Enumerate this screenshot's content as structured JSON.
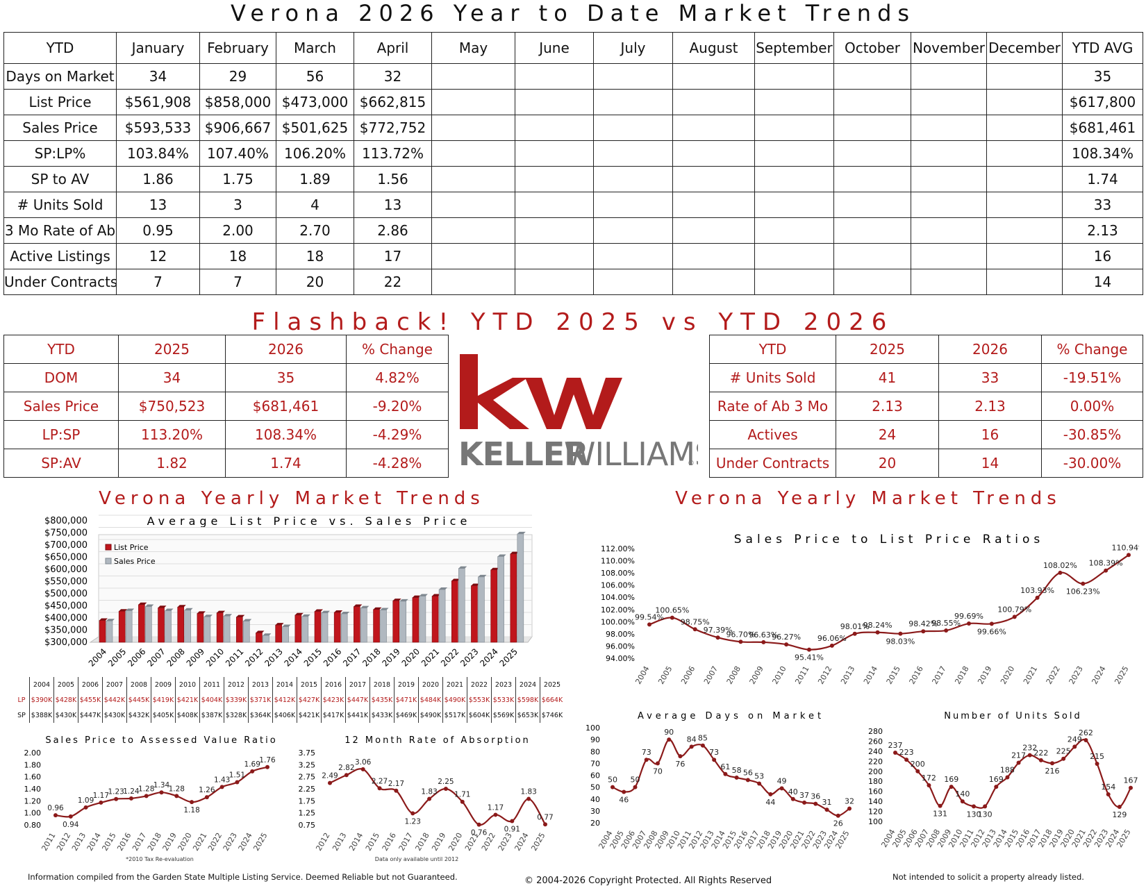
{
  "title": "Verona 2026 Year to Date Market Trends",
  "main_table": {
    "headers": [
      "YTD",
      "January",
      "February",
      "March",
      "April",
      "May",
      "June",
      "July",
      "August",
      "September",
      "October",
      "November",
      "December",
      "YTD AVG"
    ],
    "rows": [
      [
        "Days on Market",
        "34",
        "29",
        "56",
        "32",
        "",
        "",
        "",
        "",
        "",
        "",
        "",
        "",
        "35"
      ],
      [
        "List Price",
        "$561,908",
        "$858,000",
        "$473,000",
        "$662,815",
        "",
        "",
        "",
        "",
        "",
        "",
        "",
        "",
        "$617,800"
      ],
      [
        "Sales Price",
        "$593,533",
        "$906,667",
        "$501,625",
        "$772,752",
        "",
        "",
        "",
        "",
        "",
        "",
        "",
        "",
        "$681,461"
      ],
      [
        "SP:LP%",
        "103.84%",
        "107.40%",
        "106.20%",
        "113.72%",
        "",
        "",
        "",
        "",
        "",
        "",
        "",
        "",
        "108.34%"
      ],
      [
        "SP to AV",
        "1.86",
        "1.75",
        "1.89",
        "1.56",
        "",
        "",
        "",
        "",
        "",
        "",
        "",
        "",
        "1.74"
      ],
      [
        "# Units Sold",
        "13",
        "3",
        "4",
        "13",
        "",
        "",
        "",
        "",
        "",
        "",
        "",
        "",
        "33"
      ],
      [
        "3 Mo Rate of Ab",
        "0.95",
        "2.00",
        "2.70",
        "2.86",
        "",
        "",
        "",
        "",
        "",
        "",
        "",
        "",
        "2.13"
      ],
      [
        "Active Listings",
        "12",
        "18",
        "18",
        "17",
        "",
        "",
        "",
        "",
        "",
        "",
        "",
        "",
        "16"
      ],
      [
        "Under Contracts",
        "7",
        "7",
        "20",
        "22",
        "",
        "",
        "",
        "",
        "",
        "",
        "",
        "",
        "14"
      ]
    ]
  },
  "flashback_title": "Flashback! YTD 2025 vs YTD 2026",
  "left_compare": {
    "headers": [
      "YTD",
      "2025",
      "2026",
      "% Change"
    ],
    "rows": [
      [
        "DOM",
        "34",
        "35",
        "4.82%"
      ],
      [
        "Sales Price",
        "$750,523",
        "$681,461",
        "-9.20%"
      ],
      [
        "LP:SP",
        "113.20%",
        "108.34%",
        "-4.29%"
      ],
      [
        "SP:AV",
        "1.82",
        "1.74",
        "-4.28%"
      ]
    ]
  },
  "right_compare": {
    "headers": [
      "YTD",
      "2025",
      "2026",
      "% Change"
    ],
    "rows": [
      [
        "# Units Sold",
        "41",
        "33",
        "-19.51%"
      ],
      [
        "Rate of Ab 3 Mo",
        "2.13",
        "2.13",
        "0.00%"
      ],
      [
        "Actives",
        "24",
        "16",
        "-30.85%"
      ],
      [
        "Under Contracts",
        "20",
        "14",
        "-30.00%"
      ]
    ]
  },
  "logo": {
    "mark": "kw",
    "wordmark_bold": "KELLER",
    "wordmark_light": "WILLIAMS",
    "registered": "®",
    "color": "#b31b1b"
  },
  "section_titles": {
    "left": "Verona Yearly Market Trends",
    "right": "Verona Yearly Market Trends"
  },
  "colors": {
    "accent": "#b31b1b",
    "line": "#8b1a1a",
    "bar_list": "#c0151c",
    "bar_sales": "#b0b8c0"
  },
  "footers": {
    "left": "Information compiled from the Garden State Multiple Listing Service. Deemed Reliable but not Guaranteed.",
    "center": "© 2004-2026 Copyright Protected. All Rights Reserved",
    "right": "Not intended to solicit a property already listed."
  },
  "chart_data": [
    {
      "type": "bar",
      "title": "Average List Price vs. Sales Price",
      "categories": [
        "2004",
        "2005",
        "2006",
        "2007",
        "2008",
        "2009",
        "2010",
        "2011",
        "2012",
        "2013",
        "2014",
        "2015",
        "2016",
        "2017",
        "2018",
        "2019",
        "2020",
        "2021",
        "2022",
        "2023",
        "2024",
        "2025"
      ],
      "series": [
        {
          "name": "List Price",
          "values": [
            390000,
            428000,
            455000,
            442000,
            445000,
            419000,
            421000,
            404000,
            339000,
            371000,
            412000,
            427000,
            423000,
            447000,
            435000,
            471000,
            484000,
            490000,
            553000,
            533000,
            598000,
            664000
          ]
        },
        {
          "name": "Sales Price",
          "values": [
            388000,
            430000,
            447000,
            430000,
            432000,
            405000,
            408000,
            387000,
            328000,
            364000,
            406000,
            421000,
            417000,
            441000,
            433000,
            469000,
            490000,
            517000,
            604000,
            569000,
            653000,
            746000
          ]
        }
      ],
      "ylim": [
        300000,
        800000
      ],
      "y_ticks": [
        "$800,000",
        "$750,000",
        "$700,000",
        "$650,000",
        "$600,000",
        "$550,000",
        "$500,000",
        "$450,000",
        "$400,000",
        "$350,000",
        "$300,000"
      ],
      "legend": "top-left",
      "data_table": {
        "years": [
          "2004",
          "2005",
          "2006",
          "2007",
          "2008",
          "2009",
          "2010",
          "2011",
          "2012",
          "2013",
          "2014",
          "2015",
          "2016",
          "2017",
          "2018",
          "2019",
          "2020",
          "2021",
          "2022",
          "2023",
          "2024",
          "2025"
        ],
        "rows": [
          {
            "label": "LP",
            "values": [
              "$390K",
              "$428K",
              "$455K",
              "$442K",
              "$445K",
              "$419K",
              "$421K",
              "$404K",
              "$339K",
              "$371K",
              "$412K",
              "$427K",
              "$423K",
              "$447K",
              "$435K",
              "$471K",
              "$484K",
              "$490K",
              "$553K",
              "$533K",
              "$598K",
              "$664K"
            ]
          },
          {
            "label": "SP",
            "values": [
              "$388K",
              "$430K",
              "$447K",
              "$430K",
              "$432K",
              "$405K",
              "$408K",
              "$387K",
              "$328K",
              "$364K",
              "$406K",
              "$421K",
              "$417K",
              "$441K",
              "$433K",
              "$469K",
              "$490K",
              "$517K",
              "$604K",
              "$569K",
              "$653K",
              "$746K"
            ]
          }
        ]
      }
    },
    {
      "type": "line",
      "title": "Sales Price to List Price Ratios",
      "x": [
        "2004",
        "2005",
        "2006",
        "2007",
        "2008",
        "2009",
        "2010",
        "2011",
        "2012",
        "2013",
        "2014",
        "2015",
        "2016",
        "2017",
        "2018",
        "2019",
        "2020",
        "2021",
        "2022",
        "2023",
        "2024",
        "2025"
      ],
      "values": [
        99.54,
        100.65,
        98.75,
        97.39,
        96.7,
        96.63,
        96.27,
        95.41,
        96.06,
        98.01,
        98.24,
        98.03,
        98.42,
        98.55,
        99.69,
        99.66,
        100.79,
        103.93,
        108.02,
        106.23,
        108.39,
        110.94
      ],
      "labels": [
        "99.54%",
        "100.65%",
        "98.75%",
        "97.39%",
        "96.70%",
        "96.63%",
        "96.27%",
        "95.41%",
        "96.06%",
        "98.01%",
        "98.24%",
        "98.03%",
        "98.42%",
        "98.55%",
        "99.69%",
        "99.66%",
        "100.79%",
        "103.93%",
        "108.02%",
        "106.23%",
        "108.39%",
        "110.94%"
      ],
      "ylim": [
        94,
        112
      ],
      "y_ticks": [
        "112.00%",
        "110.00%",
        "108.00%",
        "106.00%",
        "104.00%",
        "102.00%",
        "100.00%",
        "98.00%",
        "96.00%",
        "94.00%"
      ]
    },
    {
      "type": "line",
      "title": "Sales Price to Assessed Value Ratio",
      "x": [
        "2011",
        "2012",
        "2013",
        "2014",
        "2015",
        "2016",
        "2017",
        "2018",
        "2019",
        "2020",
        "2021",
        "2022",
        "2023",
        "2024",
        "2025"
      ],
      "values": [
        0.96,
        0.94,
        1.09,
        1.17,
        1.23,
        1.24,
        1.28,
        1.34,
        1.28,
        1.18,
        1.26,
        1.43,
        1.51,
        1.69,
        1.76
      ],
      "labels": [
        "0.96",
        "0.94",
        "1.09",
        "1.17",
        "1.23",
        "1.24",
        "1.28",
        "1.34",
        "1.28",
        "1.18",
        "1.26",
        "1.43",
        "1.51",
        "1.69",
        "1.76"
      ],
      "ylim": [
        0.8,
        2.0
      ],
      "y_ticks": [
        "2.00",
        "1.80",
        "1.60",
        "1.40",
        "1.20",
        "1.00",
        "0.80"
      ],
      "note": "*2010 Tax Re-evaluation"
    },
    {
      "type": "line",
      "title": "12 Month Rate of Absorption",
      "x": [
        "2012",
        "2013",
        "2014",
        "2015",
        "2016",
        "2017",
        "2018",
        "2019",
        "2020",
        "2021",
        "2022",
        "2023",
        "2024",
        "2025"
      ],
      "values": [
        2.49,
        2.82,
        3.06,
        2.27,
        2.17,
        1.23,
        1.83,
        2.25,
        1.71,
        0.76,
        1.17,
        0.91,
        1.83,
        0.77
      ],
      "labels": [
        "2.49",
        "2.82",
        "3.06",
        "2.27",
        "2.17",
        "1.23",
        "1.83",
        "2.25",
        "1.71",
        "0.76",
        "1.17",
        "0.91",
        "1.83",
        "0.77"
      ],
      "ylim": [
        0.75,
        3.75
      ],
      "y_ticks": [
        "3.75",
        "3.25",
        "2.75",
        "2.25",
        "1.75",
        "1.25",
        "0.75"
      ],
      "note": "Data only available until 2012"
    },
    {
      "type": "line",
      "title": "Average Days on Market",
      "x": [
        "2004",
        "2005",
        "2006",
        "2007",
        "2008",
        "2009",
        "2010",
        "2011",
        "2012",
        "2013",
        "2014",
        "2015",
        "2016",
        "2017",
        "2018",
        "2019",
        "2020",
        "2021",
        "2022",
        "2023",
        "2024",
        "2025"
      ],
      "values": [
        50,
        46,
        50,
        73,
        70,
        90,
        76,
        84,
        85,
        73,
        61,
        58,
        56,
        53,
        44,
        49,
        40,
        37,
        36,
        31,
        26,
        32
      ],
      "labels": [
        "50",
        "46",
        "50",
        "73",
        "70",
        "90",
        "76",
        "84",
        "85",
        "73",
        "61",
        "58",
        "56",
        "53",
        "44",
        "49",
        "40",
        "37",
        "36",
        "31",
        "26",
        "32"
      ],
      "ylim": [
        20,
        100
      ],
      "y_ticks": [
        "100",
        "90",
        "80",
        "70",
        "60",
        "50",
        "40",
        "30",
        "20"
      ]
    },
    {
      "type": "line",
      "title": "Number of Units Sold",
      "x": [
        "2004",
        "2005",
        "2006",
        "2007",
        "2008",
        "2009",
        "2010",
        "2011",
        "2012",
        "2013",
        "2014",
        "2015",
        "2016",
        "2017",
        "2018",
        "2019",
        "2020",
        "2021",
        "2022",
        "2023",
        "2024",
        "2025"
      ],
      "values": [
        237,
        223,
        200,
        172,
        131,
        169,
        140,
        130,
        130,
        169,
        188,
        217,
        232,
        222,
        216,
        225,
        249,
        262,
        215,
        154,
        129,
        167
      ],
      "labels": [
        "237",
        "223",
        "200",
        "172",
        "131",
        "169",
        "140",
        "130",
        "130",
        "169",
        "188",
        "217",
        "232",
        "222",
        "216",
        "225",
        "249",
        "262",
        "215",
        "154",
        "129",
        "167"
      ],
      "ylim": [
        100,
        280
      ],
      "y_ticks": [
        "280",
        "260",
        "240",
        "220",
        "200",
        "180",
        "160",
        "140",
        "120",
        "100"
      ]
    }
  ]
}
